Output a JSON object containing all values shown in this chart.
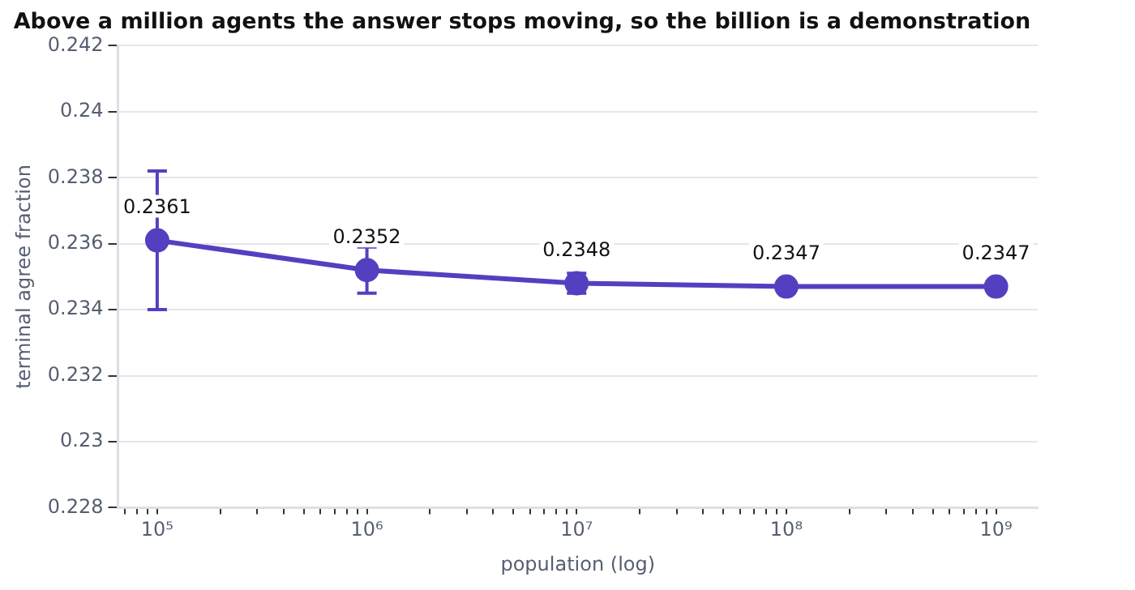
{
  "chart_data": {
    "type": "line",
    "title": "Above a million agents the answer stops moving, so the billion is a demonstration",
    "xlabel": "population (log)",
    "ylabel": "terminal agree fraction",
    "x": [
      100000,
      1000000,
      10000000,
      100000000,
      1000000000
    ],
    "series": [
      {
        "color": "#5340c0",
        "values": [
          0.2361,
          0.2352,
          0.2348,
          0.2347,
          0.2347
        ],
        "errors": [
          0.0021,
          0.0007,
          0.0003,
          null,
          null
        ]
      }
    ],
    "data_labels": true,
    "log": "x",
    "grid": "y",
    "legend": false,
    "marker": "circle",
    "line_style": "solid",
    "xlim": [
      65000,
      1580000000
    ],
    "xticks": [
      {
        "value": 70000,
        "label": null
      },
      {
        "value": 80000,
        "label": null
      },
      {
        "value": 90000,
        "label": null
      },
      {
        "value": 100000,
        "label": "10⁵"
      },
      {
        "value": 200000,
        "label": null
      },
      {
        "value": 300000,
        "label": null
      },
      {
        "value": 400000,
        "label": null
      },
      {
        "value": 500000,
        "label": null
      },
      {
        "value": 600000,
        "label": null
      },
      {
        "value": 700000,
        "label": null
      },
      {
        "value": 800000,
        "label": null
      },
      {
        "value": 900000,
        "label": null
      },
      {
        "value": 1000000,
        "label": "10⁶"
      },
      {
        "value": 2000000,
        "label": null
      },
      {
        "value": 3000000,
        "label": null
      },
      {
        "value": 4000000,
        "label": null
      },
      {
        "value": 5000000,
        "label": null
      },
      {
        "value": 6000000,
        "label": null
      },
      {
        "value": 7000000,
        "label": null
      },
      {
        "value": 8000000,
        "label": null
      },
      {
        "value": 9000000,
        "label": null
      },
      {
        "value": 10000000,
        "label": "10⁷"
      },
      {
        "value": 20000000,
        "label": null
      },
      {
        "value": 30000000,
        "label": null
      },
      {
        "value": 40000000,
        "label": null
      },
      {
        "value": 50000000,
        "label": null
      },
      {
        "value": 60000000,
        "label": null
      },
      {
        "value": 70000000,
        "label": null
      },
      {
        "value": 80000000,
        "label": null
      },
      {
        "value": 90000000,
        "label": null
      },
      {
        "value": 100000000,
        "label": "10⁸"
      },
      {
        "value": 200000000,
        "label": null
      },
      {
        "value": 300000000,
        "label": null
      },
      {
        "value": 400000000,
        "label": null
      },
      {
        "value": 500000000,
        "label": null
      },
      {
        "value": 600000000,
        "label": null
      },
      {
        "value": 700000000,
        "label": null
      },
      {
        "value": 800000000,
        "label": null
      },
      {
        "value": 900000000,
        "label": null
      },
      {
        "value": 1000000000,
        "label": "10⁹"
      }
    ],
    "ylim": [
      0.228,
      0.242
    ],
    "yticks": [
      0.228,
      0.23,
      0.232,
      0.234,
      0.236,
      0.238,
      0.24,
      0.242
    ]
  }
}
